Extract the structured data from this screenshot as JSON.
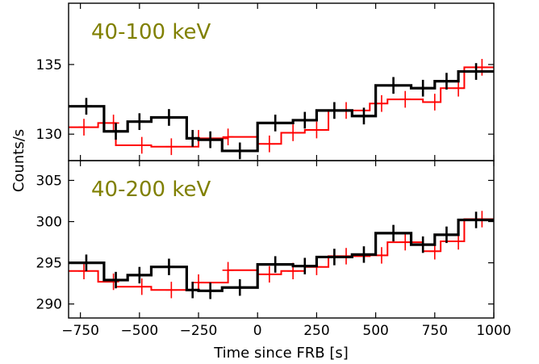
{
  "chart_data": {
    "type": "step",
    "xlabel": "Time since FRB [s]",
    "ylabel": "Counts/s",
    "xlim": [
      -800,
      1000
    ],
    "xticks": [
      -750,
      -500,
      -250,
      0,
      250,
      500,
      750,
      1000
    ],
    "xtick_labels": [
      "−750",
      "−500",
      "−250",
      "0",
      "250",
      "500",
      "750",
      "1000"
    ],
    "grid": false,
    "panels": [
      {
        "label": "40-100 keV",
        "label_color": "#808000",
        "ylim": [
          128.1,
          139.4
        ],
        "yticks": [
          130,
          135
        ],
        "ytick_labels": [
          "130",
          "135"
        ],
        "series": [
          {
            "color": "#000000",
            "edges": [
              -800,
              -650,
              -550,
              -450,
              -300,
              -250,
              -150,
              0,
              150,
              250,
              400,
              500,
              650,
              750,
              850,
              1000
            ],
            "values": [
              132.0,
              130.2,
              130.9,
              131.2,
              129.7,
              129.6,
              128.8,
              130.8,
              131.0,
              131.7,
              131.3,
              133.5,
              133.3,
              133.8,
              134.5
            ],
            "err_x": [
              -725,
              -600,
              -500,
              -375,
              -275,
              -200,
              -75,
              75,
              200,
              325,
              450,
              575,
              700,
              800,
              925
            ],
            "err": [
              0.6,
              0.6,
              0.6,
              0.6,
              0.6,
              0.6,
              0.6,
              0.6,
              0.6,
              0.6,
              0.6,
              0.6,
              0.6,
              0.6,
              0.6
            ]
          },
          {
            "color": "#ff0000",
            "edges": [
              -800,
              -675,
              -600,
              -450,
              -250,
              -125,
              0,
              100,
              200,
              300,
              475,
              550,
              700,
              775,
              875,
              1000
            ],
            "values": [
              130.5,
              130.8,
              129.2,
              129.1,
              129.7,
              129.8,
              129.3,
              130.1,
              130.3,
              131.7,
              132.2,
              132.5,
              132.3,
              133.3,
              134.8
            ],
            "err_x": [
              -735,
              -610,
              -490,
              -365,
              -250,
              -125,
              50,
              150,
              250,
              375,
              525,
              625,
              750,
              850,
              950
            ],
            "err": [
              0.6,
              0.6,
              0.6,
              0.6,
              0.6,
              0.6,
              0.6,
              0.6,
              0.6,
              0.6,
              0.6,
              0.6,
              0.6,
              0.6,
              0.6
            ]
          }
        ]
      },
      {
        "label": "40-200 keV",
        "label_color": "#808000",
        "ylim": [
          288.3,
          307.4
        ],
        "yticks": [
          290,
          295,
          300,
          305
        ],
        "ytick_labels": [
          "290",
          "295",
          "300",
          "305"
        ],
        "series": [
          {
            "color": "#000000",
            "edges": [
              -800,
              -650,
              -550,
              -450,
              -300,
              -250,
              -150,
              0,
              150,
              250,
              400,
              500,
              650,
              750,
              850,
              1000
            ],
            "values": [
              295.0,
              292.9,
              293.5,
              294.5,
              291.7,
              291.6,
              292.0,
              294.8,
              294.6,
              295.7,
              296.0,
              298.6,
              297.2,
              298.4,
              300.2
            ],
            "err_x": [
              -725,
              -600,
              -500,
              -375,
              -275,
              -200,
              -75,
              75,
              200,
              325,
              450,
              575,
              700,
              800,
              925
            ],
            "err": [
              1.0,
              1.0,
              1.0,
              1.0,
              1.0,
              1.0,
              1.0,
              1.0,
              1.0,
              1.0,
              1.0,
              1.0,
              1.0,
              1.0,
              1.0
            ]
          },
          {
            "color": "#ff0000",
            "edges": [
              -800,
              -675,
              -600,
              -450,
              -250,
              -125,
              0,
              100,
              200,
              300,
              475,
              550,
              700,
              775,
              875,
              1000
            ],
            "values": [
              294.0,
              292.7,
              292.1,
              291.7,
              292.6,
              294.1,
              293.6,
              294.0,
              294.5,
              295.8,
              295.9,
              297.5,
              296.4,
              297.6,
              300.3
            ],
            "err_x": [
              -735,
              -610,
              -490,
              -365,
              -250,
              -125,
              50,
              150,
              250,
              375,
              525,
              625,
              750,
              850,
              950
            ],
            "err": [
              1.0,
              1.0,
              1.0,
              1.0,
              1.0,
              1.0,
              1.0,
              1.0,
              1.0,
              1.0,
              1.0,
              1.0,
              1.0,
              1.0,
              1.0
            ]
          }
        ]
      }
    ]
  }
}
